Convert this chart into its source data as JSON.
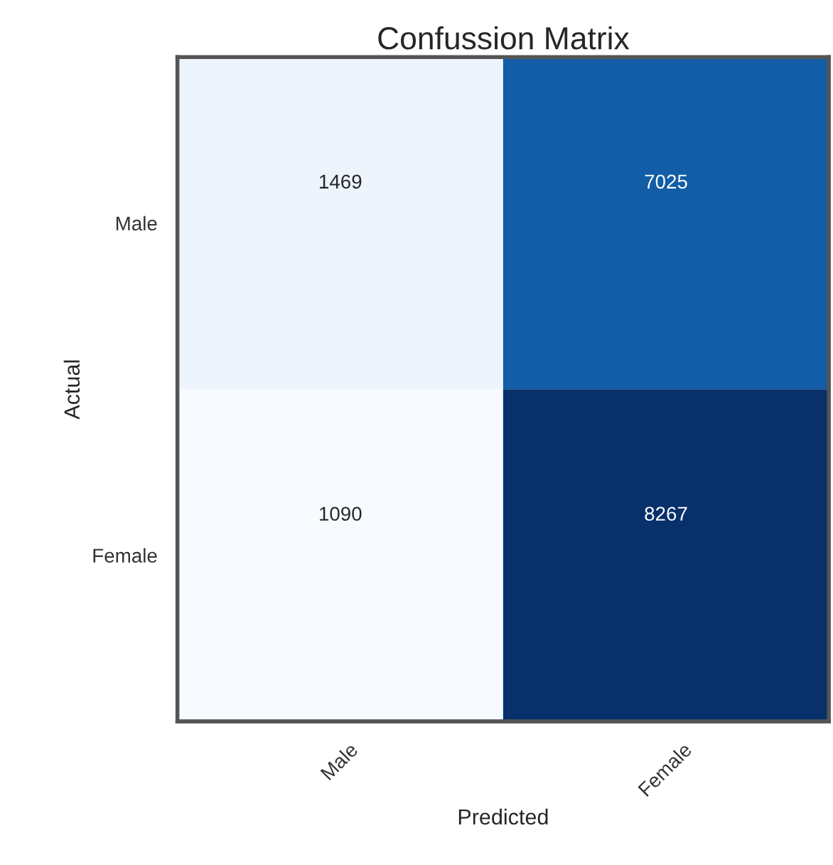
{
  "chart_data": {
    "type": "heatmap",
    "title": "Confussion Matrix",
    "xlabel": "Predicted",
    "ylabel": "Actual",
    "categories": [
      "Male",
      "Female"
    ],
    "y_categories": [
      "Male",
      "Female"
    ],
    "cells": [
      [
        1469,
        7025
      ],
      [
        1090,
        8267
      ]
    ],
    "data_labels": true,
    "grid": false
  }
}
